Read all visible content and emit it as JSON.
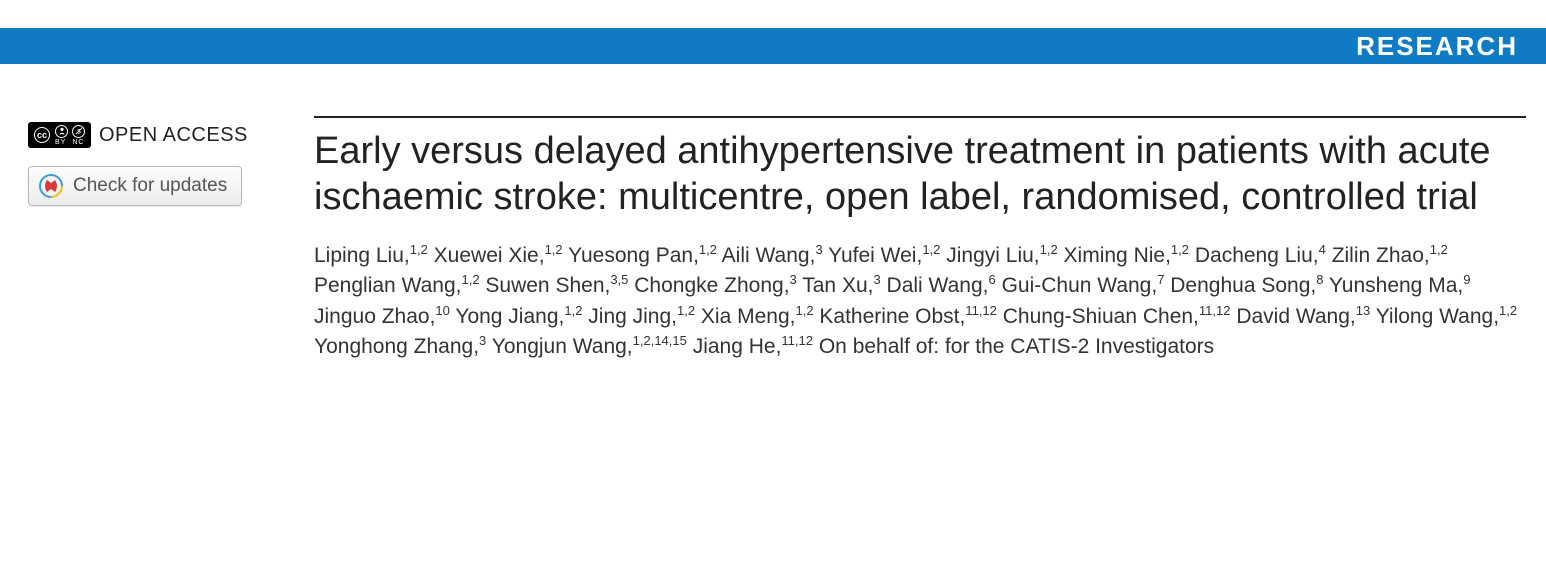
{
  "banner": {
    "label": "RESEARCH",
    "bg_color": "#0e7bc4",
    "text_color": "#ffffff"
  },
  "sidebar": {
    "open_access_label": "OPEN ACCESS",
    "cc_main": "cc",
    "cc_by": "BY",
    "cc_nc": "NC",
    "updates_label": "Check for updates"
  },
  "article": {
    "title": "Early versus delayed antihypertensive treatment in patients with acute ischaemic stroke: multicentre, open label, randomised, controlled trial",
    "authors": [
      {
        "name": "Liping Liu",
        "aff": "1,2"
      },
      {
        "name": "Xuewei Xie",
        "aff": "1,2"
      },
      {
        "name": "Yuesong Pan",
        "aff": "1,2"
      },
      {
        "name": "Aili Wang",
        "aff": "3"
      },
      {
        "name": "Yufei Wei",
        "aff": "1,2"
      },
      {
        "name": "Jingyi Liu",
        "aff": "1,2"
      },
      {
        "name": "Ximing Nie",
        "aff": "1,2"
      },
      {
        "name": "Dacheng Liu",
        "aff": "4"
      },
      {
        "name": "Zilin Zhao",
        "aff": "1,2"
      },
      {
        "name": "Penglian Wang",
        "aff": "1,2"
      },
      {
        "name": "Suwen Shen",
        "aff": "3,5"
      },
      {
        "name": "Chongke Zhong",
        "aff": "3"
      },
      {
        "name": "Tan Xu",
        "aff": "3"
      },
      {
        "name": "Dali Wang",
        "aff": "6"
      },
      {
        "name": "Gui-Chun Wang",
        "aff": "7"
      },
      {
        "name": "Denghua Song",
        "aff": "8"
      },
      {
        "name": "Yunsheng Ma",
        "aff": "9"
      },
      {
        "name": "Jinguo Zhao",
        "aff": "10"
      },
      {
        "name": "Yong Jiang",
        "aff": "1,2"
      },
      {
        "name": "Jing Jing",
        "aff": "1,2"
      },
      {
        "name": "Xia Meng",
        "aff": "1,2"
      },
      {
        "name": "Katherine Obst",
        "aff": "11,12"
      },
      {
        "name": "Chung-Shiuan Chen",
        "aff": "11,12"
      },
      {
        "name": "David Wang",
        "aff": "13"
      },
      {
        "name": "Yilong Wang",
        "aff": "1,2"
      },
      {
        "name": "Yonghong Zhang",
        "aff": "3"
      },
      {
        "name": "Yongjun Wang",
        "aff": "1,2,14,15"
      },
      {
        "name": "Jiang He",
        "aff": "11,12"
      }
    ],
    "group_author": "On behalf of: for the CATIS-2 Investigators"
  }
}
